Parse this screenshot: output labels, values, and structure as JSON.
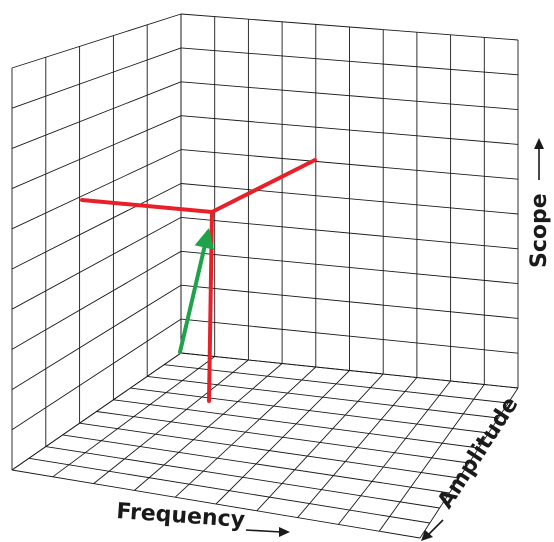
{
  "axes": {
    "frequency": "Frequency",
    "amplitude": "Amplitude",
    "scope": "Scope"
  },
  "colors": {
    "grid": "#1a1a1a",
    "red_vector": "#e8202a",
    "green_vector": "#1fa34a",
    "label": "#1a1a1a"
  }
}
